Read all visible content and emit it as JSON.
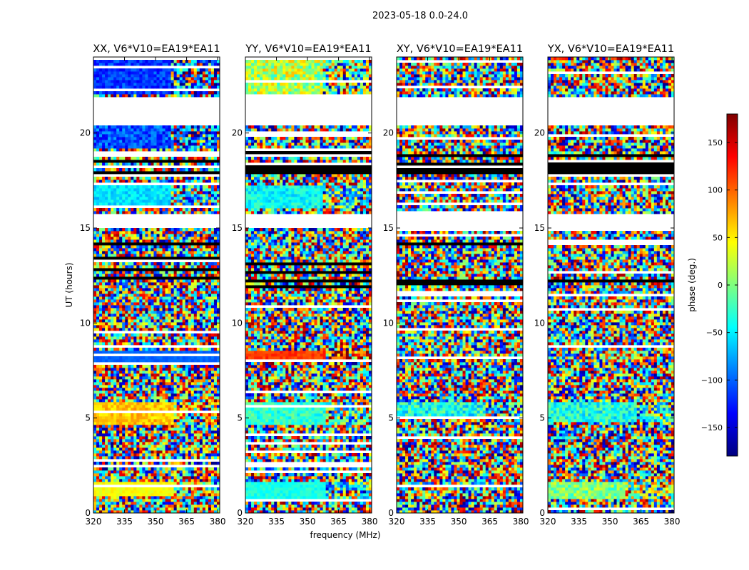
{
  "figure": {
    "suptitle": "2023-05-18 0.0-24.0"
  },
  "chart_data": {
    "type": "heatmap",
    "description_of_values": "visibility phase vs frequency and UT",
    "xlabel": "frequency (MHz)",
    "ylabel": "UT (hours)",
    "xlim": [
      320,
      381
    ],
    "ylim": [
      0,
      24
    ],
    "xticks": [
      320,
      335,
      350,
      365,
      380
    ],
    "yticks": [
      0,
      5,
      10,
      15,
      20
    ],
    "panels": [
      {
        "title": "XX, V6*V10=EA19*EA11",
        "pol": "XX"
      },
      {
        "title": "YY, V6*V10=EA19*EA11",
        "pol": "YY"
      },
      {
        "title": "XY, V6*V10=EA19*EA11",
        "pol": "XY"
      },
      {
        "title": "YX, V6*V10=EA19*EA11",
        "pol": "YX"
      }
    ],
    "colorbar": {
      "label": "phase (deg.)",
      "range": [
        -180,
        180
      ],
      "ticks": [
        -150,
        -100,
        -50,
        0,
        50,
        100,
        150
      ],
      "colormap": "jet"
    },
    "gaps_hours": [
      [
        21.9,
        20.4
      ],
      [
        15.7,
        15.0
      ]
    ]
  }
}
